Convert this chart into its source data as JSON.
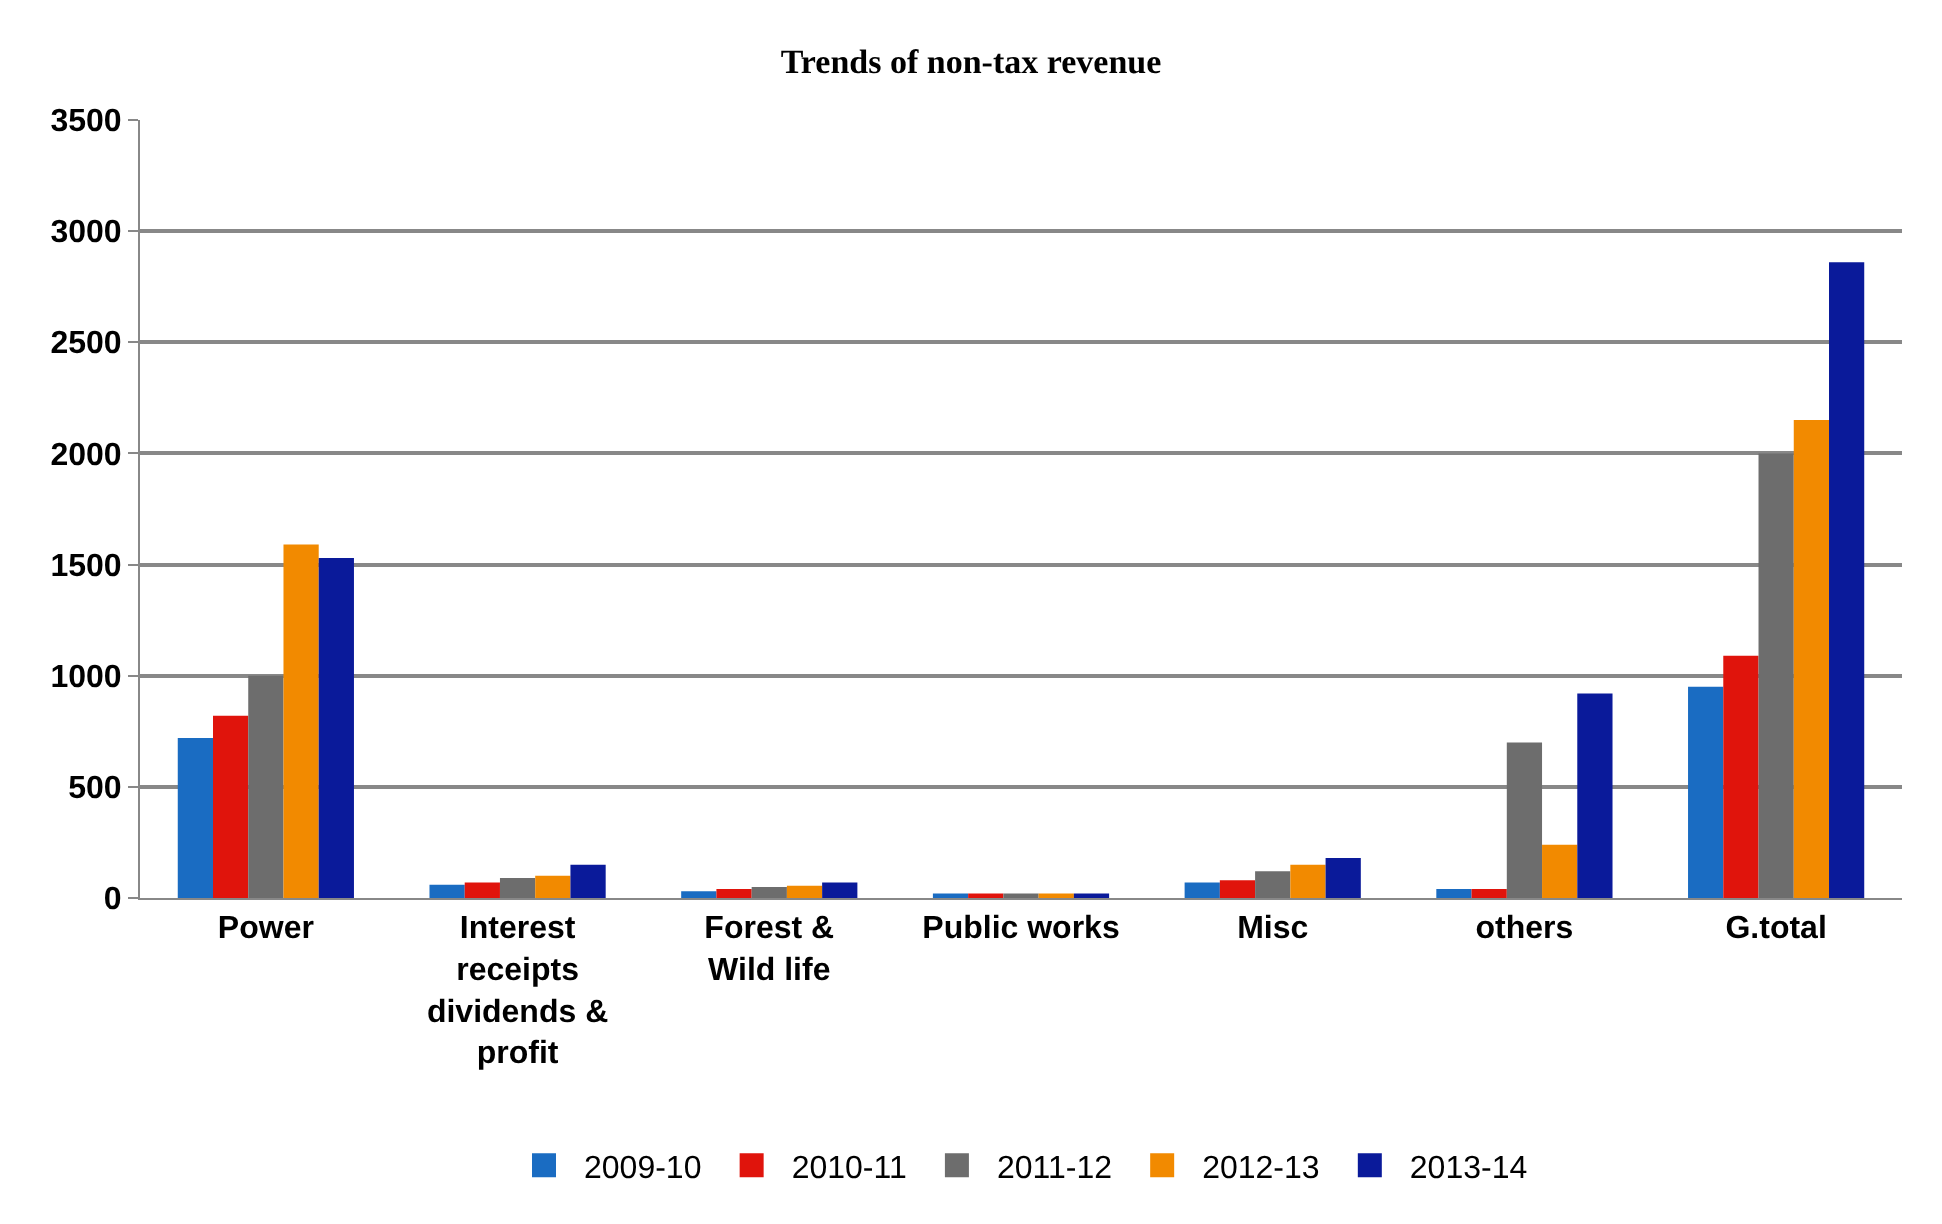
{
  "chart_data": {
    "type": "bar",
    "title": "Trends of non-tax revenue",
    "categories": [
      "Power",
      "Interest\nreceipts\ndividends &\nprofit",
      "Forest &\nWild life",
      "Public works",
      "Misc",
      "others",
      "G.total"
    ],
    "series": [
      {
        "name": "2009-10",
        "color": "#1a6cc2",
        "values": [
          720,
          60,
          30,
          20,
          70,
          40,
          950
        ]
      },
      {
        "name": "2010-11",
        "color": "#e0140c",
        "values": [
          820,
          70,
          40,
          20,
          80,
          40,
          1090
        ]
      },
      {
        "name": "2011-12",
        "color": "#6d6d6d",
        "values": [
          1000,
          90,
          50,
          20,
          120,
          700,
          2000
        ]
      },
      {
        "name": "2012-13",
        "color": "#f28a00",
        "values": [
          1590,
          100,
          55,
          20,
          150,
          240,
          2150
        ]
      },
      {
        "name": "2013-14",
        "color": "#0a1a9a",
        "values": [
          1530,
          150,
          70,
          20,
          180,
          920,
          2860
        ]
      }
    ],
    "ylim": [
      0,
      3500
    ],
    "yticks": [
      0,
      500,
      1000,
      1500,
      2000,
      2500,
      3000,
      3500
    ],
    "grid": "y",
    "legend": "bottom"
  }
}
